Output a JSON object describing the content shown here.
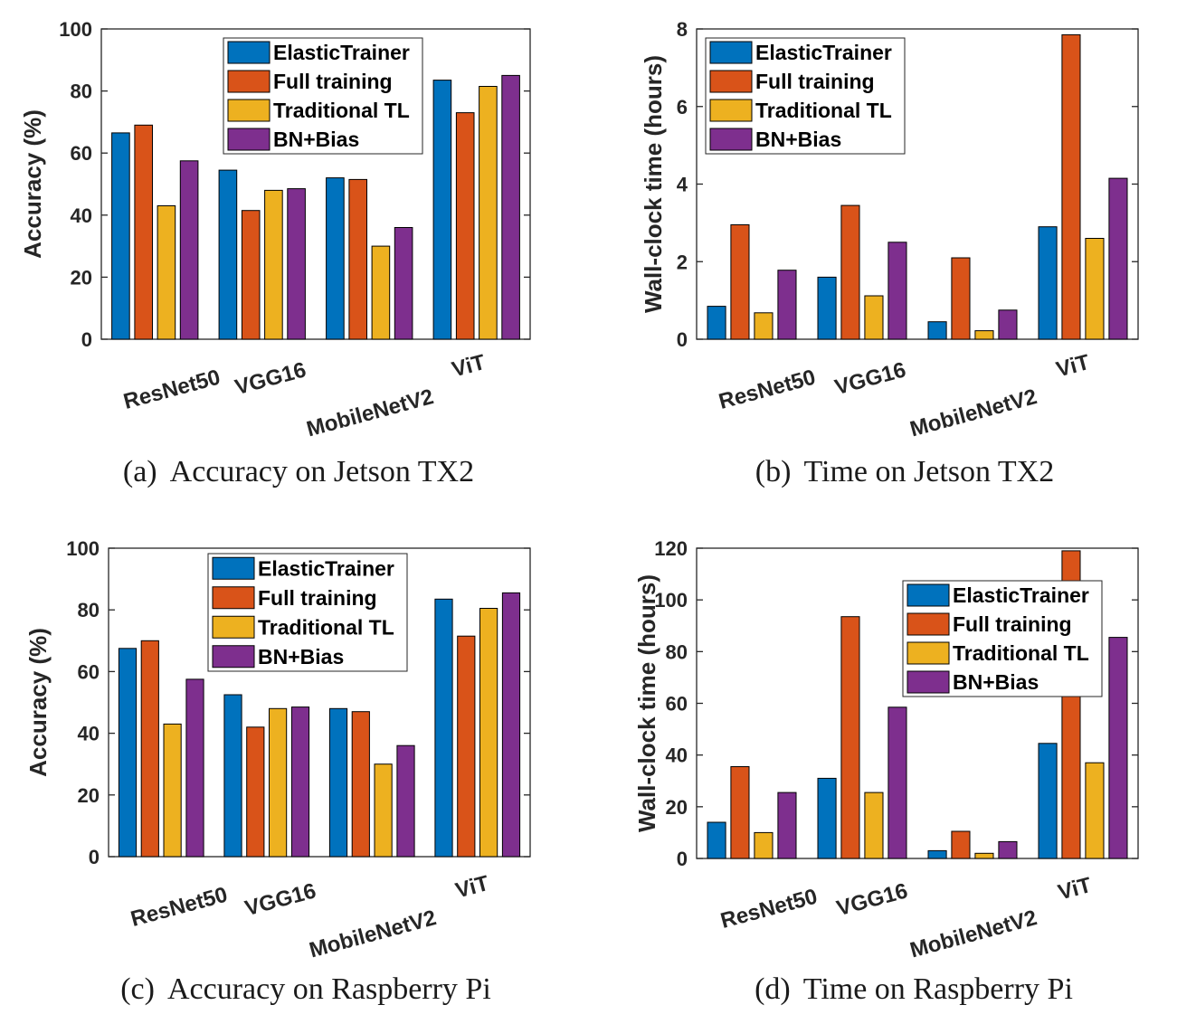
{
  "series_colors": [
    "#0072BD",
    "#D95319",
    "#EDB120",
    "#7E2F8E"
  ],
  "chart_data": [
    {
      "id": "a",
      "type": "bar",
      "caption_label": "(a)",
      "caption_text": "Accuracy on Jetson TX2",
      "ylabel": "Accuracy (%)",
      "xlabel": "",
      "ylim": [
        0,
        100
      ],
      "yticks": [
        0,
        20,
        40,
        60,
        80,
        100
      ],
      "categories": [
        "ResNet50",
        "VGG16",
        "MobileNetV2",
        "ViT"
      ],
      "legend_position": "top-right",
      "series": [
        {
          "name": "ElasticTrainer",
          "values": [
            66.5,
            54.5,
            52,
            83.5
          ]
        },
        {
          "name": "Full training",
          "values": [
            69,
            41.5,
            51.5,
            73
          ]
        },
        {
          "name": "Traditional TL",
          "values": [
            43,
            48,
            30,
            81.5
          ]
        },
        {
          "name": "BN+Bias",
          "values": [
            57.5,
            48.5,
            36,
            85
          ]
        }
      ]
    },
    {
      "id": "b",
      "type": "bar",
      "caption_label": "(b)",
      "caption_text": "Time on Jetson TX2",
      "ylabel": "Wall-clock time (hours)",
      "xlabel": "",
      "ylim": [
        0,
        8
      ],
      "yticks": [
        0,
        2,
        4,
        6,
        8
      ],
      "categories": [
        "ResNet50",
        "VGG16",
        "MobileNetV2",
        "ViT"
      ],
      "legend_position": "top-left",
      "series": [
        {
          "name": "ElasticTrainer",
          "values": [
            0.85,
            1.6,
            0.45,
            2.9
          ]
        },
        {
          "name": "Full training",
          "values": [
            2.95,
            3.45,
            2.1,
            7.85
          ]
        },
        {
          "name": "Traditional TL",
          "values": [
            0.68,
            1.12,
            0.22,
            2.6
          ]
        },
        {
          "name": "BN+Bias",
          "values": [
            1.78,
            2.5,
            0.75,
            4.15
          ]
        }
      ]
    },
    {
      "id": "c",
      "type": "bar",
      "caption_label": "(c)",
      "caption_text": "Accuracy on Raspberry Pi",
      "ylabel": "Accuracy (%)",
      "xlabel": "",
      "ylim": [
        0,
        100
      ],
      "yticks": [
        0,
        20,
        40,
        60,
        80,
        100
      ],
      "categories": [
        "ResNet50",
        "VGG16",
        "MobileNetV2",
        "ViT"
      ],
      "legend_position": "top-right",
      "series": [
        {
          "name": "ElasticTrainer",
          "values": [
            67.5,
            52.5,
            48,
            83.5
          ]
        },
        {
          "name": "Full training",
          "values": [
            70,
            42,
            47,
            71.5
          ]
        },
        {
          "name": "Traditional TL",
          "values": [
            43,
            48,
            30,
            80.5
          ]
        },
        {
          "name": "BN+Bias",
          "values": [
            57.5,
            48.5,
            36,
            85.5
          ]
        }
      ]
    },
    {
      "id": "d",
      "type": "bar",
      "caption_label": "(d)",
      "caption_text": "Time on Raspberry Pi",
      "ylabel": "Wall-clock time (hours)",
      "xlabel": "",
      "ylim": [
        0,
        120
      ],
      "yticks": [
        0,
        20,
        40,
        60,
        80,
        100,
        120
      ],
      "categories": [
        "ResNet50",
        "VGG16",
        "MobileNetV2",
        "ViT"
      ],
      "legend_position": "top-right",
      "series": [
        {
          "name": "ElasticTrainer",
          "values": [
            14,
            31,
            3,
            44.5
          ]
        },
        {
          "name": "Full training",
          "values": [
            35.5,
            93.5,
            10.5,
            119
          ]
        },
        {
          "name": "Traditional TL",
          "values": [
            10,
            25.5,
            2,
            37
          ]
        },
        {
          "name": "BN+Bias",
          "values": [
            25.5,
            58.5,
            6.5,
            85.5
          ]
        }
      ]
    }
  ]
}
